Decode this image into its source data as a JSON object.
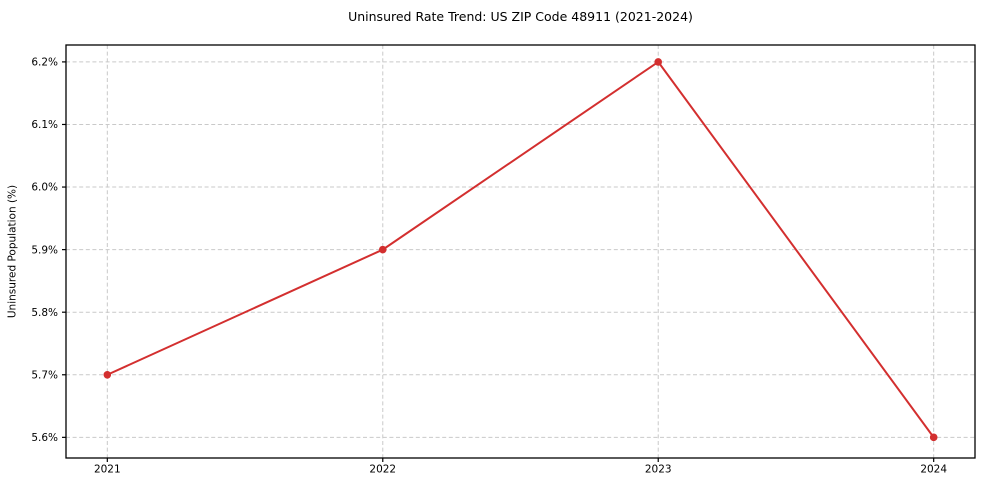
{
  "page": {
    "background_color": "#ffffff"
  },
  "chart_data": {
    "type": "line",
    "title": "Uninsured Rate Trend: US ZIP Code 48911 (2021-2024)",
    "xlabel": "",
    "ylabel": "Uninsured Population (%)",
    "x": [
      2021,
      2022,
      2023,
      2024
    ],
    "values": [
      5.7,
      5.9,
      6.2,
      5.6
    ],
    "xlim": [
      2020.85,
      2024.15
    ],
    "ylim": [
      5.567,
      6.227
    ],
    "xticks": {
      "values": [
        2021,
        2022,
        2023,
        2024
      ],
      "labels": [
        "2021",
        "2022",
        "2023",
        "2024"
      ]
    },
    "yticks": {
      "values": [
        5.6,
        5.7,
        5.8,
        5.9,
        6.0,
        6.1,
        6.2
      ],
      "labels": [
        "5.6%",
        "5.7%",
        "5.8%",
        "5.9%",
        "6.0%",
        "6.1%",
        "6.2%"
      ]
    },
    "grid": true,
    "grid_color": "#c9c9c9",
    "grid_dash": "4 2.6",
    "line_color": "#d32f2f",
    "line_width": 2,
    "marker": "circle",
    "marker_radius": 3.8,
    "axis_color": "#000000",
    "text_color": "#000000",
    "legend": "none"
  }
}
